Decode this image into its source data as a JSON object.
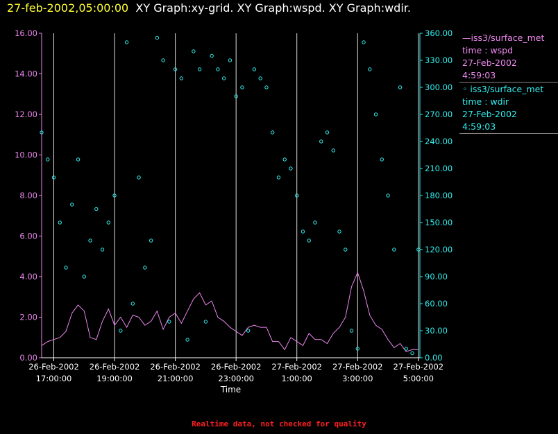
{
  "title": {
    "timestamp": "27-feb-2002,05:00:00",
    "rest": "XY Graph:xy-grid.  XY Graph:wspd.  XY Graph:wdir."
  },
  "legend": [
    {
      "line1": "—iss3/surface_met",
      "line2": "time : wspd",
      "line3": "27-Feb-2002",
      "line4": "4:59:03",
      "color": "#ee88ee"
    },
    {
      "line1": "◦ iss3/surface_met",
      "line2": "time : wdir",
      "line3": "27-Feb-2002",
      "line4": "4:59:03",
      "color": "#33eeee"
    }
  ],
  "footer": "Realtime data, not checked for quality",
  "colors": {
    "wspd": "#ee88ee",
    "wdir": "#33eeee",
    "grid": "#dddddd",
    "axis_text": "#ffffff"
  },
  "chart_data": {
    "type": "line",
    "xlabel": "Time",
    "x_range_hours": [
      16.6,
      29.05
    ],
    "y_left": {
      "range": [
        0,
        16
      ],
      "ticks": [
        "0.00",
        "2.00",
        "4.00",
        "6.00",
        "8.00",
        "10.00",
        "12.00",
        "14.00",
        "16.00"
      ]
    },
    "y_right": {
      "range": [
        0,
        360
      ],
      "ticks": [
        "0.00",
        "30.00",
        "60.00",
        "90.00",
        "120.00",
        "150.00",
        "180.00",
        "210.00",
        "240.00",
        "270.00",
        "300.00",
        "330.00",
        "360.00"
      ]
    },
    "x_ticks": [
      {
        "h": 17,
        "line1": "26-Feb-2002",
        "line2": "17:00:00"
      },
      {
        "h": 19,
        "line1": "26-Feb-2002",
        "line2": "19:00:00"
      },
      {
        "h": 21,
        "line1": "26-Feb-2002",
        "line2": "21:00:00"
      },
      {
        "h": 23,
        "line1": "26-Feb-2002",
        "line2": "23:00:00"
      },
      {
        "h": 25,
        "line1": "27-Feb-2002",
        "line2": "1:00:00"
      },
      {
        "h": 27,
        "line1": "27-Feb-2002",
        "line2": "3:00:00"
      },
      {
        "h": 29,
        "line1": "27-Feb-2002",
        "line2": "5:00:00"
      }
    ],
    "grid_vertical": true,
    "series": [
      {
        "name": "wspd",
        "axis": "left",
        "style": "line",
        "points": [
          [
            16.6,
            0.6
          ],
          [
            16.8,
            0.8
          ],
          [
            17.0,
            0.9
          ],
          [
            17.2,
            1.0
          ],
          [
            17.4,
            1.3
          ],
          [
            17.6,
            2.2
          ],
          [
            17.8,
            2.6
          ],
          [
            18.0,
            2.3
          ],
          [
            18.2,
            1.0
          ],
          [
            18.4,
            0.9
          ],
          [
            18.6,
            1.8
          ],
          [
            18.8,
            2.4
          ],
          [
            19.0,
            1.6
          ],
          [
            19.2,
            2.0
          ],
          [
            19.4,
            1.5
          ],
          [
            19.6,
            2.1
          ],
          [
            19.8,
            2.0
          ],
          [
            20.0,
            1.6
          ],
          [
            20.2,
            1.8
          ],
          [
            20.4,
            2.3
          ],
          [
            20.6,
            1.4
          ],
          [
            20.8,
            2.0
          ],
          [
            21.0,
            2.2
          ],
          [
            21.2,
            1.7
          ],
          [
            21.4,
            2.3
          ],
          [
            21.6,
            2.9
          ],
          [
            21.8,
            3.2
          ],
          [
            22.0,
            2.6
          ],
          [
            22.2,
            2.8
          ],
          [
            22.4,
            2.0
          ],
          [
            22.6,
            1.8
          ],
          [
            22.8,
            1.5
          ],
          [
            23.0,
            1.3
          ],
          [
            23.2,
            1.1
          ],
          [
            23.4,
            1.5
          ],
          [
            23.6,
            1.6
          ],
          [
            23.8,
            1.5
          ],
          [
            24.0,
            1.5
          ],
          [
            24.2,
            0.8
          ],
          [
            24.4,
            0.8
          ],
          [
            24.6,
            0.4
          ],
          [
            24.8,
            1.0
          ],
          [
            25.0,
            0.8
          ],
          [
            25.2,
            0.6
          ],
          [
            25.4,
            1.2
          ],
          [
            25.6,
            0.9
          ],
          [
            25.8,
            0.9
          ],
          [
            26.0,
            0.7
          ],
          [
            26.2,
            1.2
          ],
          [
            26.4,
            1.5
          ],
          [
            26.6,
            2.0
          ],
          [
            26.8,
            3.5
          ],
          [
            27.0,
            4.2
          ],
          [
            27.2,
            3.3
          ],
          [
            27.4,
            2.1
          ],
          [
            27.6,
            1.6
          ],
          [
            27.8,
            1.4
          ],
          [
            28.0,
            0.9
          ],
          [
            28.2,
            0.5
          ],
          [
            28.4,
            0.7
          ],
          [
            28.6,
            0.3
          ],
          [
            28.8,
            0.4
          ],
          [
            29.0,
            0.4
          ]
        ]
      },
      {
        "name": "wdir",
        "axis": "right",
        "style": "scatter",
        "points": [
          [
            16.6,
            250
          ],
          [
            16.8,
            220
          ],
          [
            17.0,
            200
          ],
          [
            17.2,
            150
          ],
          [
            17.4,
            100
          ],
          [
            17.6,
            170
          ],
          [
            17.8,
            220
          ],
          [
            18.0,
            90
          ],
          [
            18.2,
            130
          ],
          [
            18.4,
            165
          ],
          [
            18.6,
            120
          ],
          [
            18.8,
            150
          ],
          [
            19.0,
            180
          ],
          [
            19.2,
            30
          ],
          [
            19.4,
            350
          ],
          [
            19.6,
            60
          ],
          [
            19.8,
            200
          ],
          [
            20.0,
            100
          ],
          [
            20.2,
            130
          ],
          [
            20.4,
            355
          ],
          [
            20.6,
            330
          ],
          [
            20.8,
            40
          ],
          [
            21.0,
            320
          ],
          [
            21.2,
            310
          ],
          [
            21.4,
            20
          ],
          [
            21.6,
            340
          ],
          [
            21.8,
            320
          ],
          [
            22.0,
            40
          ],
          [
            22.2,
            335
          ],
          [
            22.4,
            320
          ],
          [
            22.6,
            310
          ],
          [
            22.8,
            330
          ],
          [
            23.0,
            290
          ],
          [
            23.2,
            300
          ],
          [
            23.4,
            30
          ],
          [
            23.6,
            320
          ],
          [
            23.8,
            310
          ],
          [
            24.0,
            300
          ],
          [
            24.2,
            250
          ],
          [
            24.4,
            200
          ],
          [
            24.6,
            220
          ],
          [
            24.8,
            210
          ],
          [
            25.0,
            180
          ],
          [
            25.2,
            140
          ],
          [
            25.4,
            130
          ],
          [
            25.6,
            150
          ],
          [
            25.8,
            240
          ],
          [
            26.0,
            250
          ],
          [
            26.2,
            230
          ],
          [
            26.4,
            140
          ],
          [
            26.6,
            120
          ],
          [
            26.8,
            30
          ],
          [
            27.0,
            10
          ],
          [
            27.2,
            350
          ],
          [
            27.4,
            320
          ],
          [
            27.6,
            270
          ],
          [
            27.8,
            220
          ],
          [
            28.0,
            180
          ],
          [
            28.2,
            120
          ],
          [
            28.4,
            300
          ],
          [
            28.6,
            10
          ],
          [
            28.8,
            5
          ],
          [
            29.0,
            120
          ]
        ]
      }
    ]
  }
}
